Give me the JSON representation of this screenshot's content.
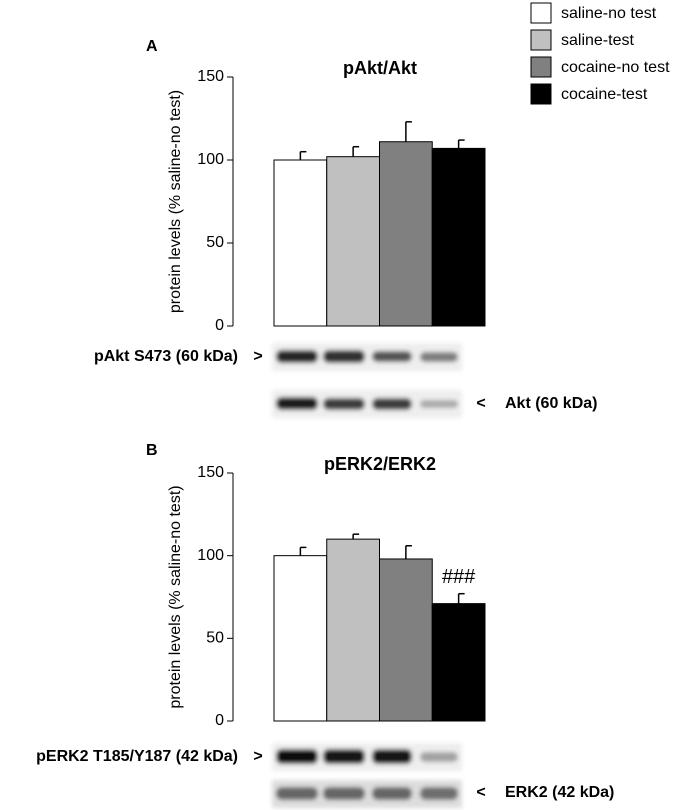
{
  "legend": [
    {
      "name": "saline-no test",
      "color": "#ffffff"
    },
    {
      "name": "saline-test",
      "color": "#c0c0c0"
    },
    {
      "name": "cocaine-no test",
      "color": "#808080"
    },
    {
      "name": "cocaine-test",
      "color": "#000000"
    }
  ],
  "chart_data": [
    {
      "type": "bar",
      "panel": "A",
      "title": "pAkt/Akt",
      "ylabel": "protein levels (% saline-no test)",
      "values": [
        100,
        102,
        111,
        107
      ],
      "errors": [
        5,
        6,
        12,
        5
      ],
      "ylim": [
        0,
        150
      ],
      "yticks": [
        0,
        50,
        100,
        150
      ],
      "blots": [
        {
          "label": "pAkt S473 (60 kDa)",
          "arrow": ">"
        },
        {
          "label": "Akt (60 kDa)",
          "arrow": "<"
        }
      ]
    },
    {
      "type": "bar",
      "panel": "B",
      "title": "pERK2/ERK2",
      "ylabel": "protein levels (% saline-no test)",
      "values": [
        100,
        110,
        98,
        71
      ],
      "errors": [
        5,
        3,
        8,
        6
      ],
      "ylim": [
        0,
        150
      ],
      "yticks": [
        0,
        50,
        100,
        150
      ],
      "annotations": [
        {
          "text": "###",
          "bar": 3
        }
      ],
      "blots": [
        {
          "label": "pERK2 T185/Y187 (42 kDa)",
          "arrow": ">"
        },
        {
          "label": "ERK2 (42 kDa)",
          "arrow": "<"
        }
      ]
    }
  ]
}
